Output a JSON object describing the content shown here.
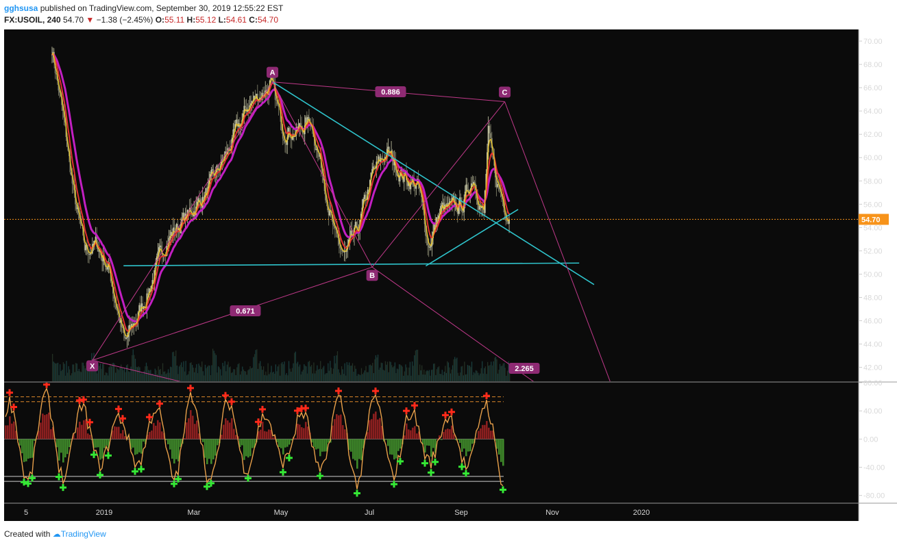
{
  "header": {
    "user": "gghsusa",
    "published_text": "published on TradingView.com, September 30, 2019 12:55:22 EST",
    "symbol": "FX:USOIL, 240",
    "last": "54.70",
    "change": "−1.38 (−2.45%)",
    "o_label": "O:",
    "o_value": "55.11",
    "h_label": "H:",
    "h_value": "55.12",
    "l_label": "L:",
    "l_value": "54.61",
    "c_label": "C:",
    "c_value": "54.70"
  },
  "footer": {
    "created_with": "Created with",
    "brand": "TradingView"
  },
  "colors": {
    "background": "#0b0b0b",
    "candle_up": "#c9c9a8",
    "candle_down": "#8a8a72",
    "ema_fast": "#e6c229",
    "ema_mid": "#e03030",
    "ema_slow": "#c21fc2",
    "trendline": "#2fc4cc",
    "harmonic": "#c0398a",
    "price_marker": "#f7931a",
    "osc_line": "#e8a04a",
    "buy_marker": "#35e835",
    "sell_marker": "#ff2a1a"
  },
  "price_label": "54.70",
  "chart_data": [
    {
      "type": "line",
      "title": "FX:USOIL, 240",
      "xaxis_ticks": [
        "5",
        "2019",
        "Mar",
        "May",
        "Jul",
        "Sep",
        "Nov",
        "2020"
      ],
      "yaxis_ticks": [
        "70.00",
        "68.00",
        "66.00",
        "64.00",
        "62.00",
        "60.00",
        "58.00",
        "56.00",
        "54.00",
        "52.00",
        "50.00",
        "48.00",
        "46.00",
        "44.00",
        "42.00"
      ],
      "ylim": [
        40.8,
        71.0
      ],
      "x": [
        "2018-11-27",
        "2018-12-05",
        "2018-12-12",
        "2018-12-19",
        "2018-12-27",
        "2019-01-04",
        "2019-01-15",
        "2019-01-29",
        "2019-02-12",
        "2019-02-26",
        "2019-03-11",
        "2019-03-25",
        "2019-04-08",
        "2019-04-23",
        "2019-05-01",
        "2019-05-10",
        "2019-05-20",
        "2019-05-29",
        "2019-06-05",
        "2019-06-12",
        "2019-06-21",
        "2019-06-30",
        "2019-07-10",
        "2019-07-20",
        "2019-07-31",
        "2019-08-07",
        "2019-08-15",
        "2019-08-22",
        "2019-08-30",
        "2019-09-06",
        "2019-09-13",
        "2019-09-16",
        "2019-09-20",
        "2019-09-27",
        "2019-09-30"
      ],
      "series": [
        {
          "name": "USOIL",
          "values": [
            69.5,
            63.0,
            56.5,
            52.0,
            52.5,
            50.5,
            44.0,
            48.0,
            53.0,
            55.0,
            57.0,
            60.5,
            64.5,
            66.3,
            62.5,
            62.2,
            63.2,
            58.0,
            53.0,
            51.5,
            54.0,
            58.5,
            60.5,
            58.5,
            57.5,
            52.5,
            55.5,
            55.5,
            56.0,
            58.5,
            55.0,
            62.0,
            58.5,
            56.0,
            54.7
          ]
        }
      ],
      "patterns": {
        "harmonic_points": [
          {
            "label": "X",
            "date": "2018-12-24",
            "price": 42.6
          },
          {
            "label": "A",
            "date": "2019-04-24",
            "price": 66.5
          },
          {
            "label": "B",
            "date": "2019-06-30",
            "price": 50.6
          },
          {
            "label": "C",
            "date": "2019-09-27",
            "price": 64.8
          }
        ],
        "ratios": [
          "0.671",
          "0.886",
          "2.265"
        ]
      }
    },
    {
      "type": "line",
      "title": "",
      "yaxis_ticks": [
        "80.00",
        "40.00",
        "0.00",
        "-40.00",
        "-80.00"
      ],
      "ylim": [
        -90,
        80
      ],
      "levels": [
        60,
        53,
        -53,
        -60
      ]
    }
  ]
}
